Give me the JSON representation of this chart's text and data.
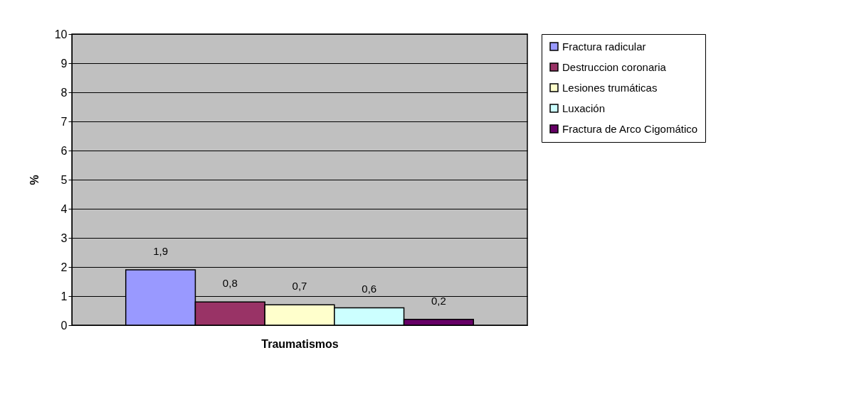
{
  "chart_data": {
    "type": "bar",
    "xlabel": "Traumatismos",
    "ylabel": "%",
    "categories": [
      null
    ],
    "series": [
      {
        "name": "Fractura radicular",
        "color": "#9999ff",
        "values": [
          1.9
        ],
        "value_labels": [
          "1,9"
        ]
      },
      {
        "name": "Destruccion coronaria",
        "color": "#993366",
        "values": [
          0.8
        ],
        "value_labels": [
          "0,8"
        ]
      },
      {
        "name": "Lesiones trumáticas",
        "color": "#ffffcc",
        "values": [
          0.7
        ],
        "value_labels": [
          "0,7"
        ]
      },
      {
        "name": "Luxación",
        "color": "#ccffff",
        "values": [
          0.6
        ],
        "value_labels": [
          "0,6"
        ]
      },
      {
        "name": "Fractura de Arco Cigomático",
        "color": "#660066",
        "values": [
          0.2
        ],
        "value_labels": [
          "0,2"
        ]
      }
    ],
    "ylim": [
      0,
      10
    ],
    "yticks": [
      0,
      1,
      2,
      3,
      4,
      5,
      6,
      7,
      8,
      9,
      10
    ],
    "grid": "y",
    "legend": "right"
  }
}
